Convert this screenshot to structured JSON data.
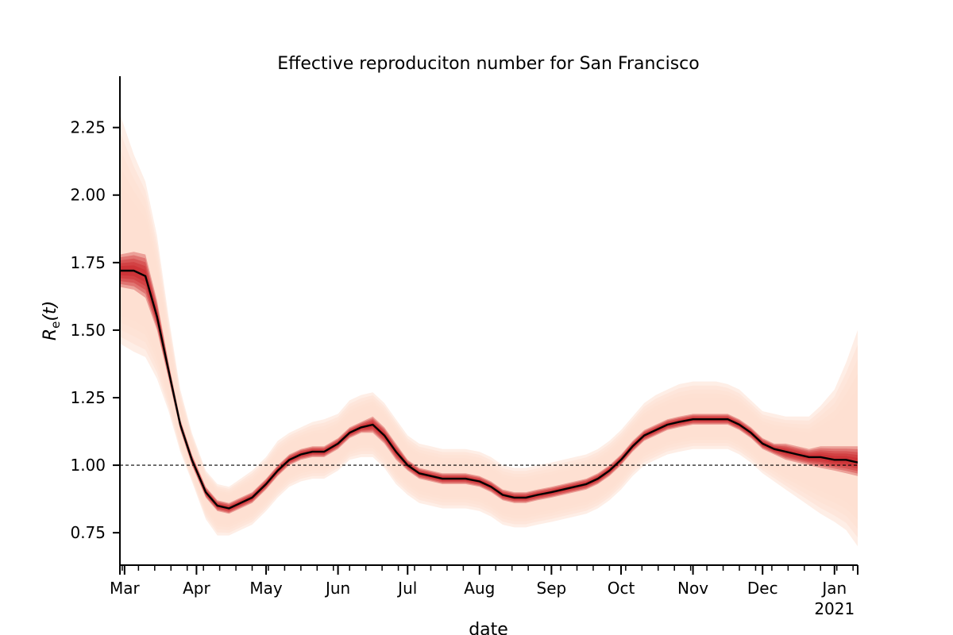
{
  "chart_data": {
    "type": "line",
    "title": "Effective reproduciton number for San Francisco",
    "xlabel": "date",
    "ylabel_base": "R",
    "ylabel_sub": "e",
    "ylabel_suffix": "(t)",
    "xlim": [
      "2020-02-28",
      "2021-01-11"
    ],
    "ylim": [
      0.63,
      2.44
    ],
    "grid": false,
    "reference_line": {
      "y": 1.0,
      "style": "dashed"
    },
    "y_ticks": [
      {
        "value": 0.75,
        "label": "0.75"
      },
      {
        "value": 1.0,
        "label": "1.00"
      },
      {
        "value": 1.25,
        "label": "1.25"
      },
      {
        "value": 1.5,
        "label": "1.50"
      },
      {
        "value": 1.75,
        "label": "1.75"
      },
      {
        "value": 2.0,
        "label": "2.00"
      },
      {
        "value": 2.25,
        "label": "2.25"
      }
    ],
    "x_ticks": [
      {
        "date": "2020-03-01",
        "label": "Mar"
      },
      {
        "date": "2020-04-01",
        "label": "Apr"
      },
      {
        "date": "2020-05-01",
        "label": "May"
      },
      {
        "date": "2020-06-01",
        "label": "Jun"
      },
      {
        "date": "2020-07-01",
        "label": "Jul"
      },
      {
        "date": "2020-08-01",
        "label": "Aug"
      },
      {
        "date": "2020-09-01",
        "label": "Sep"
      },
      {
        "date": "2020-10-01",
        "label": "Oct"
      },
      {
        "date": "2020-11-01",
        "label": "Nov"
      },
      {
        "date": "2020-12-01",
        "label": "Dec"
      },
      {
        "date": "2021-01-01",
        "label": "Jan",
        "sublabel": "2021"
      }
    ],
    "colors": {
      "median_line": "#000000",
      "inner_band": "#c8181e",
      "outer_band": "#fee0d2"
    },
    "series": [
      {
        "x": [
          "2020-02-28",
          "2020-03-05",
          "2020-03-10",
          "2020-03-15",
          "2020-03-20",
          "2020-03-25",
          "2020-03-30",
          "2020-04-05",
          "2020-04-10",
          "2020-04-15",
          "2020-04-20",
          "2020-04-25",
          "2020-05-01",
          "2020-05-06",
          "2020-05-11",
          "2020-05-16",
          "2020-05-21",
          "2020-05-26",
          "2020-06-01",
          "2020-06-06",
          "2020-06-11",
          "2020-06-16",
          "2020-06-21",
          "2020-06-26",
          "2020-07-01",
          "2020-07-06",
          "2020-07-11",
          "2020-07-16",
          "2020-07-21",
          "2020-07-26",
          "2020-08-01",
          "2020-08-06",
          "2020-08-11",
          "2020-08-16",
          "2020-08-21",
          "2020-08-26",
          "2020-09-01",
          "2020-09-06",
          "2020-09-11",
          "2020-09-16",
          "2020-09-21",
          "2020-09-26",
          "2020-10-01",
          "2020-10-06",
          "2020-10-11",
          "2020-10-16",
          "2020-10-21",
          "2020-10-26",
          "2020-11-01",
          "2020-11-06",
          "2020-11-11",
          "2020-11-16",
          "2020-11-21",
          "2020-11-26",
          "2020-12-01",
          "2020-12-06",
          "2020-12-11",
          "2020-12-16",
          "2020-12-21",
          "2020-12-26",
          "2021-01-01",
          "2021-01-06",
          "2021-01-11"
        ],
        "median": [
          1.72,
          1.72,
          1.7,
          1.55,
          1.35,
          1.15,
          1.02,
          0.9,
          0.85,
          0.84,
          0.86,
          0.88,
          0.93,
          0.98,
          1.02,
          1.04,
          1.05,
          1.05,
          1.08,
          1.12,
          1.14,
          1.15,
          1.11,
          1.05,
          1.0,
          0.97,
          0.96,
          0.95,
          0.95,
          0.95,
          0.94,
          0.92,
          0.89,
          0.88,
          0.88,
          0.89,
          0.9,
          0.91,
          0.92,
          0.93,
          0.95,
          0.98,
          1.02,
          1.07,
          1.11,
          1.13,
          1.15,
          1.16,
          1.17,
          1.17,
          1.17,
          1.17,
          1.15,
          1.12,
          1.08,
          1.06,
          1.05,
          1.04,
          1.03,
          1.03,
          1.02,
          1.02,
          1.01
        ],
        "p25": [
          1.66,
          1.65,
          1.62,
          1.5,
          1.32,
          1.13,
          1.0,
          0.88,
          0.83,
          0.82,
          0.84,
          0.86,
          0.91,
          0.96,
          1.0,
          1.02,
          1.03,
          1.03,
          1.06,
          1.1,
          1.12,
          1.12,
          1.08,
          1.02,
          0.98,
          0.95,
          0.94,
          0.93,
          0.93,
          0.93,
          0.92,
          0.9,
          0.87,
          0.86,
          0.86,
          0.87,
          0.88,
          0.89,
          0.9,
          0.91,
          0.93,
          0.96,
          1.0,
          1.05,
          1.09,
          1.11,
          1.13,
          1.14,
          1.15,
          1.15,
          1.15,
          1.15,
          1.13,
          1.1,
          1.06,
          1.04,
          1.02,
          1.01,
          1.0,
          0.99,
          0.98,
          0.97,
          0.96
        ],
        "p75": [
          1.78,
          1.79,
          1.78,
          1.61,
          1.38,
          1.17,
          1.04,
          0.92,
          0.87,
          0.86,
          0.88,
          0.9,
          0.95,
          1.0,
          1.04,
          1.06,
          1.07,
          1.07,
          1.1,
          1.14,
          1.16,
          1.18,
          1.14,
          1.08,
          1.02,
          0.99,
          0.98,
          0.97,
          0.97,
          0.97,
          0.96,
          0.94,
          0.91,
          0.9,
          0.9,
          0.91,
          0.92,
          0.93,
          0.94,
          0.95,
          0.97,
          1.0,
          1.04,
          1.09,
          1.13,
          1.15,
          1.17,
          1.18,
          1.19,
          1.19,
          1.19,
          1.19,
          1.17,
          1.14,
          1.1,
          1.08,
          1.08,
          1.07,
          1.06,
          1.07,
          1.07,
          1.07,
          1.07
        ],
        "p05": [
          1.45,
          1.42,
          1.4,
          1.32,
          1.2,
          1.05,
          0.94,
          0.8,
          0.74,
          0.74,
          0.76,
          0.78,
          0.83,
          0.88,
          0.92,
          0.94,
          0.95,
          0.95,
          0.98,
          1.02,
          1.03,
          1.03,
          0.99,
          0.93,
          0.89,
          0.86,
          0.85,
          0.84,
          0.84,
          0.84,
          0.83,
          0.81,
          0.78,
          0.77,
          0.77,
          0.78,
          0.79,
          0.8,
          0.81,
          0.82,
          0.84,
          0.87,
          0.91,
          0.96,
          1.0,
          1.02,
          1.04,
          1.05,
          1.06,
          1.06,
          1.06,
          1.06,
          1.04,
          1.01,
          0.97,
          0.94,
          0.91,
          0.88,
          0.85,
          0.82,
          0.79,
          0.76,
          0.7
        ],
        "p95": [
          2.3,
          2.15,
          2.05,
          1.85,
          1.55,
          1.28,
          1.12,
          0.98,
          0.93,
          0.92,
          0.95,
          0.98,
          1.03,
          1.09,
          1.12,
          1.14,
          1.16,
          1.17,
          1.19,
          1.24,
          1.26,
          1.27,
          1.23,
          1.17,
          1.11,
          1.08,
          1.07,
          1.06,
          1.06,
          1.06,
          1.05,
          1.03,
          1.0,
          0.99,
          0.99,
          1.0,
          1.01,
          1.02,
          1.03,
          1.04,
          1.06,
          1.09,
          1.13,
          1.18,
          1.23,
          1.26,
          1.28,
          1.3,
          1.31,
          1.31,
          1.31,
          1.3,
          1.28,
          1.24,
          1.2,
          1.19,
          1.18,
          1.18,
          1.18,
          1.22,
          1.28,
          1.38,
          1.5
        ]
      }
    ]
  }
}
